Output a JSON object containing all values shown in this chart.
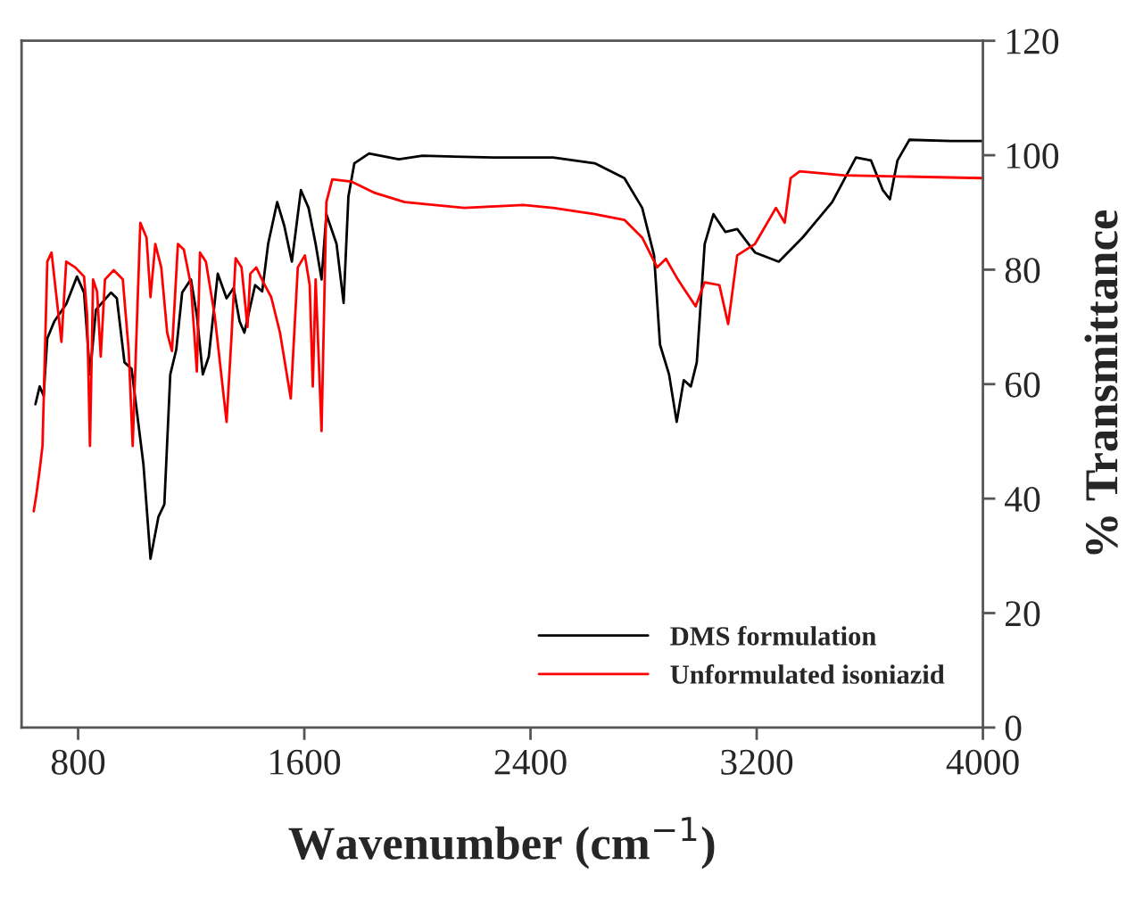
{
  "chart_data": {
    "type": "line",
    "xlabel": "Wavenumber (cm$^{−1}$)",
    "ylabel": "% Transmittance",
    "xlim": [
      600,
      4000
    ],
    "xticks": [
      800,
      1600,
      2400,
      3200,
      4000
    ],
    "ylim": [
      0,
      120
    ],
    "yticks": [
      0,
      20,
      40,
      60,
      80,
      100,
      120
    ],
    "grid": false,
    "legend": "bottom right",
    "marker": "none",
    "line_style": "solid",
    "series": [
      {
        "name": "DMS formulation",
        "color": "#000000",
        "x": [
          649,
          664,
          678,
          691,
          716,
          758,
          796,
          821,
          842,
          863,
          916,
          937,
          964,
          989,
          1031,
          1056,
          1084,
          1105,
          1126,
          1147,
          1168,
          1199,
          1220,
          1241,
          1262,
          1294,
          1325,
          1350,
          1371,
          1388,
          1426,
          1451,
          1472,
          1504,
          1529,
          1556,
          1588,
          1615,
          1640,
          1661,
          1678,
          1714,
          1739,
          1756,
          1777,
          1829,
          1934,
          2018,
          2270,
          2480,
          2627,
          2732,
          2795,
          2837,
          2858,
          2890,
          2917,
          2942,
          2967,
          2988,
          3016,
          3047,
          3089,
          3131,
          3194,
          3278,
          3362,
          3467,
          3551,
          3604,
          3646,
          3671,
          3698,
          3740,
          3887,
          3996
        ],
        "values": [
          56.5,
          59.6,
          58,
          68,
          71,
          74,
          78.8,
          76,
          61.7,
          73,
          76,
          75,
          63.8,
          62.7,
          46,
          29.5,
          36.8,
          39,
          61.7,
          66,
          76,
          78.3,
          72,
          61.7,
          64.8,
          79.3,
          75,
          76.8,
          71,
          69,
          77.3,
          76.2,
          84.5,
          91.8,
          87.7,
          81.4,
          93.9,
          90.8,
          84.5,
          78.3,
          89.7,
          84.5,
          74.2,
          92.8,
          98.6,
          100.3,
          99.3,
          99.9,
          99.6,
          99.6,
          98.6,
          96,
          90.8,
          82.5,
          66.9,
          61.7,
          53.4,
          60.7,
          59.6,
          63.8,
          84.5,
          89.7,
          86.6,
          87.1,
          83,
          81.4,
          85.6,
          91.8,
          99.6,
          99.1,
          93.9,
          92.3,
          99.1,
          102.7,
          102.5,
          102.5
        ]
      },
      {
        "name": "Unformulated isoniazid",
        "color": "#ff0000",
        "x": [
          643,
          653,
          664,
          674,
          691,
          706,
          733,
          741,
          758,
          790,
          821,
          832,
          842,
          853,
          867,
          880,
          895,
          926,
          958,
          979,
          993,
          1020,
          1042,
          1056,
          1073,
          1094,
          1115,
          1132,
          1153,
          1174,
          1199,
          1220,
          1231,
          1252,
          1283,
          1325,
          1342,
          1357,
          1378,
          1399,
          1409,
          1430,
          1455,
          1483,
          1514,
          1552,
          1577,
          1602,
          1619,
          1630,
          1640,
          1661,
          1678,
          1699,
          1766,
          1850,
          1955,
          2165,
          2375,
          2480,
          2627,
          2732,
          2795,
          2848,
          2879,
          2921,
          2984,
          3016,
          3068,
          3099,
          3131,
          3194,
          3268,
          3299,
          3320,
          3352,
          3509,
          3996
        ],
        "values": [
          37.8,
          40.9,
          45,
          49.2,
          81.4,
          83,
          71,
          67.4,
          81.4,
          80.4,
          78.8,
          72,
          49.2,
          78.3,
          76.2,
          64.8,
          78.3,
          79.9,
          78.3,
          65.8,
          49.2,
          88.2,
          85.6,
          75.2,
          84.5,
          80.4,
          69,
          65.8,
          84.5,
          83.5,
          77.3,
          62.2,
          83,
          81.4,
          72,
          53.4,
          67.9,
          82,
          80.4,
          70,
          79.3,
          80.4,
          77.8,
          75.2,
          69,
          57.5,
          80.4,
          82.5,
          77.3,
          59.6,
          78.3,
          51.8,
          91.8,
          95.8,
          95.4,
          93.4,
          91.8,
          90.8,
          91.3,
          90.8,
          89.7,
          88.7,
          85.6,
          80.4,
          81.9,
          78.3,
          73.6,
          77.8,
          77.3,
          70.5,
          82.5,
          84.5,
          90.8,
          88.2,
          96,
          97.2,
          96.5,
          96
        ]
      }
    ]
  }
}
